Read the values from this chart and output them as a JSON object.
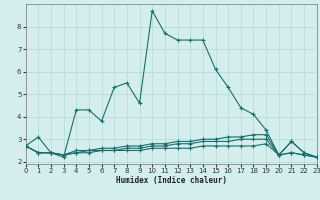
{
  "xlabel": "Humidex (Indice chaleur)",
  "bg_color": "#d4eeee",
  "grid_color": "#b8dcdc",
  "line_color": "#1a6e6a",
  "x_ticks": [
    0,
    1,
    2,
    3,
    4,
    5,
    6,
    7,
    8,
    9,
    10,
    11,
    12,
    13,
    14,
    15,
    16,
    17,
    18,
    19,
    20,
    21,
    22,
    23
  ],
  "y_ticks": [
    2,
    3,
    4,
    5,
    6,
    7,
    8
  ],
  "xlim": [
    0,
    23
  ],
  "ylim": [
    1.9,
    9.0
  ],
  "series": [
    {
      "x": [
        0,
        1,
        2,
        3,
        4,
        5,
        6,
        7,
        8,
        9,
        10,
        11,
        12,
        13,
        14,
        15,
        16,
        17,
        18,
        19,
        20,
        21,
        22,
        23
      ],
      "y": [
        2.7,
        3.1,
        2.4,
        2.2,
        4.3,
        4.3,
        3.8,
        5.3,
        5.5,
        4.6,
        8.7,
        7.7,
        7.4,
        7.4,
        7.4,
        6.1,
        5.3,
        4.4,
        4.1,
        3.4,
        2.3,
        2.9,
        2.4,
        2.2
      ]
    },
    {
      "x": [
        0,
        1,
        2,
        3,
        4,
        5,
        6,
        7,
        8,
        9,
        10,
        11,
        12,
        13,
        14,
        15,
        16,
        17,
        18,
        19,
        20,
        21,
        22,
        23
      ],
      "y": [
        2.7,
        2.4,
        2.4,
        2.3,
        2.5,
        2.5,
        2.6,
        2.6,
        2.7,
        2.7,
        2.8,
        2.8,
        2.9,
        2.9,
        3.0,
        3.0,
        3.1,
        3.1,
        3.2,
        3.2,
        2.3,
        2.9,
        2.4,
        2.2
      ]
    },
    {
      "x": [
        0,
        1,
        2,
        3,
        4,
        5,
        6,
        7,
        8,
        9,
        10,
        11,
        12,
        13,
        14,
        15,
        16,
        17,
        18,
        19,
        20,
        21,
        22,
        23
      ],
      "y": [
        2.7,
        2.4,
        2.4,
        2.3,
        2.4,
        2.5,
        2.5,
        2.5,
        2.6,
        2.6,
        2.7,
        2.7,
        2.8,
        2.8,
        2.9,
        2.9,
        2.9,
        3.0,
        3.0,
        3.0,
        2.3,
        2.4,
        2.3,
        2.2
      ]
    },
    {
      "x": [
        0,
        1,
        2,
        3,
        4,
        5,
        6,
        7,
        8,
        9,
        10,
        11,
        12,
        13,
        14,
        15,
        16,
        17,
        18,
        19,
        20,
        21,
        22,
        23
      ],
      "y": [
        2.7,
        2.4,
        2.4,
        2.3,
        2.4,
        2.4,
        2.5,
        2.5,
        2.5,
        2.5,
        2.6,
        2.6,
        2.6,
        2.6,
        2.7,
        2.7,
        2.7,
        2.7,
        2.7,
        2.8,
        2.3,
        2.4,
        2.3,
        2.2
      ]
    }
  ]
}
